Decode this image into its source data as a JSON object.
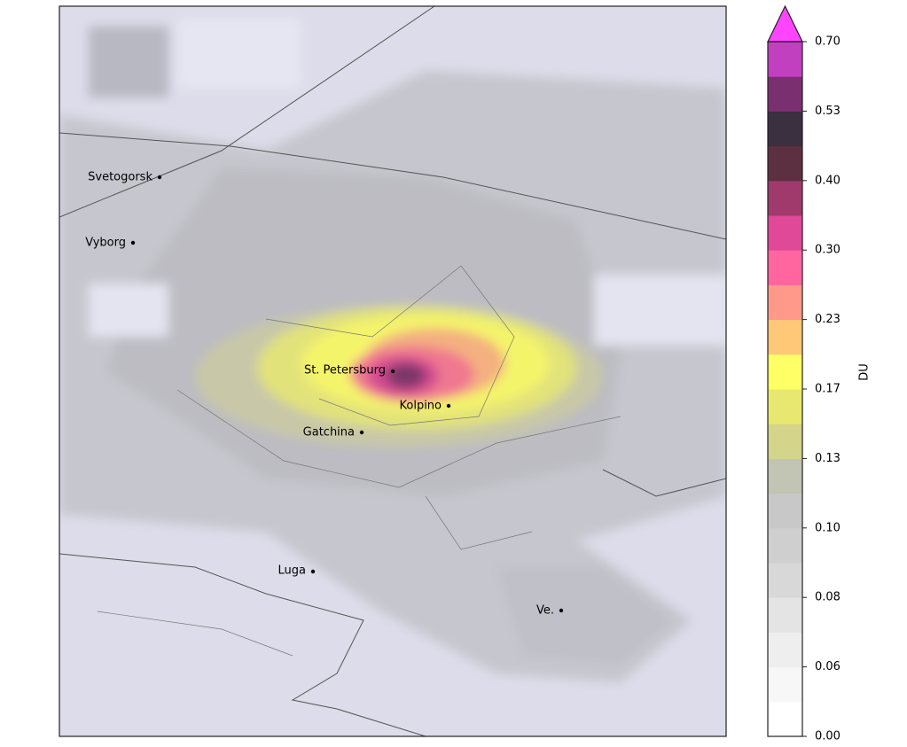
{
  "map": {
    "cities": [
      "Svetogorsk",
      "Vyborg",
      "St. Petersburg",
      "Kolpino",
      "Gatchina",
      "Luga",
      "Ve."
    ]
  },
  "colorbar": {
    "label": "DU",
    "ticks": [
      {
        "value": 0.0,
        "label": "0.00"
      },
      {
        "value": 0.06,
        "label": "0.06"
      },
      {
        "value": 0.08,
        "label": "0.08"
      },
      {
        "value": 0.1,
        "label": "0.10"
      },
      {
        "value": 0.13,
        "label": "0.13"
      },
      {
        "value": 0.17,
        "label": "0.17"
      },
      {
        "value": 0.23,
        "label": "0.23"
      },
      {
        "value": 0.3,
        "label": "0.30"
      },
      {
        "value": 0.4,
        "label": "0.40"
      },
      {
        "value": 0.53,
        "label": "0.53"
      },
      {
        "value": 0.7,
        "label": "0.70"
      }
    ],
    "colors": [
      "#ffffff",
      "#f7f7f7",
      "#eeeeee",
      "#e4e4e4",
      "#d8d8d8",
      "#cfcfcf",
      "#c8c8c8",
      "#c2c4b4",
      "#d4d48a",
      "#e8e870",
      "#ffff66",
      "#ffc878",
      "#ff9a8a",
      "#ff66a0",
      "#e04898",
      "#a03a6c",
      "#5c3040",
      "#3a3040",
      "#7a3070",
      "#c040c0"
    ],
    "extend_color": "#ff44ff"
  }
}
